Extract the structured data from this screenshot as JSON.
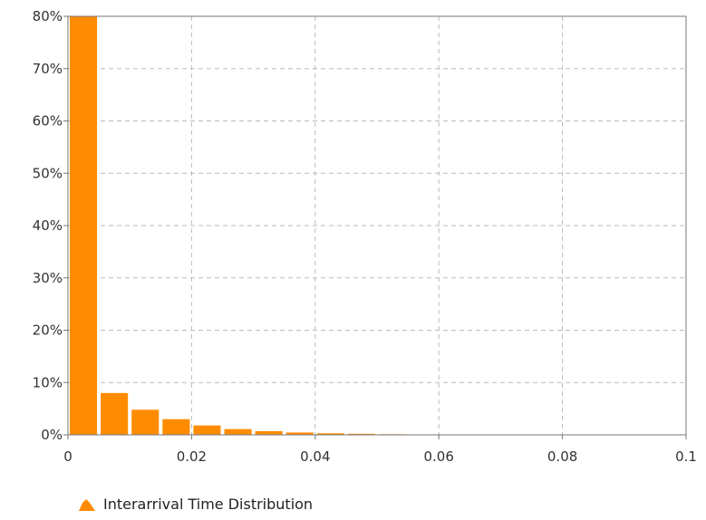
{
  "chart_data": {
    "type": "bar",
    "title": "",
    "xlabel": "",
    "ylabel": "",
    "xlim": [
      0,
      0.1
    ],
    "ylim": [
      0,
      80
    ],
    "bin_width": 0.005,
    "x_ticks": [
      "0",
      "0.02",
      "0.04",
      "0.06",
      "0.08",
      "0.1"
    ],
    "y_ticks": [
      "0%",
      "10%",
      "20%",
      "30%",
      "40%",
      "50%",
      "60%",
      "70%",
      "80%"
    ],
    "grid": true,
    "legend_position": "bottom-left",
    "series": [
      {
        "name": "Interarrival Time Distribution",
        "color": "#FF8C00",
        "x": [
          0.0,
          0.005,
          0.01,
          0.015,
          0.02,
          0.025,
          0.03,
          0.035,
          0.04,
          0.045,
          0.05,
          0.055
        ],
        "values": [
          80,
          8.0,
          4.8,
          3.0,
          1.8,
          1.1,
          0.7,
          0.45,
          0.3,
          0.2,
          0.12,
          0.08
        ]
      }
    ]
  }
}
